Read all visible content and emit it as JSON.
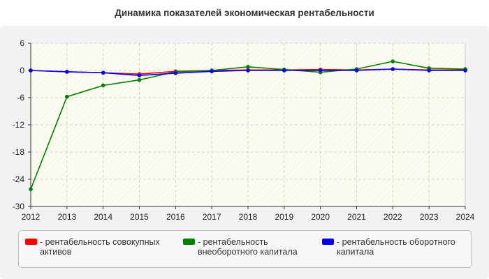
{
  "chart_data": {
    "type": "line",
    "title": "Динамика показателей экономическая рентабельности",
    "xlabel": "",
    "ylabel": "",
    "categories": [
      "2012",
      "2013",
      "2014",
      "2015",
      "2016",
      "2017",
      "2018",
      "2019",
      "2020",
      "2021",
      "2022",
      "2023",
      "2024"
    ],
    "ylim": [
      -30,
      6
    ],
    "yticks": [
      6,
      0,
      -6,
      -12,
      -18,
      -24,
      -30
    ],
    "ytick_labels": [
      "6",
      "0",
      "-6",
      "-12",
      "-18",
      "-24",
      "-30"
    ],
    "grid": true,
    "legend_position": "bottom",
    "series": [
      {
        "name": "- рентабельность совокупных активов",
        "color": "#ff0000",
        "values": [
          0,
          -0.3,
          -0.5,
          -0.8,
          -0.2,
          0,
          0.1,
          0.1,
          0.2,
          0.1,
          0.3,
          0.1,
          0.1
        ]
      },
      {
        "name": "- рентабельность внеоборотного капитала",
        "color": "#008000",
        "values": [
          -26.2,
          -5.8,
          -3.3,
          -2.1,
          -0.3,
          0,
          0.8,
          0.2,
          -0.4,
          0.3,
          2.0,
          0.5,
          0.3
        ]
      },
      {
        "name": "- рентабельность оборотного капитала",
        "color": "#0000ff",
        "values": [
          0,
          -0.3,
          -0.5,
          -1.1,
          -0.6,
          -0.2,
          0,
          0,
          0,
          0,
          0.3,
          0,
          0
        ]
      }
    ]
  }
}
